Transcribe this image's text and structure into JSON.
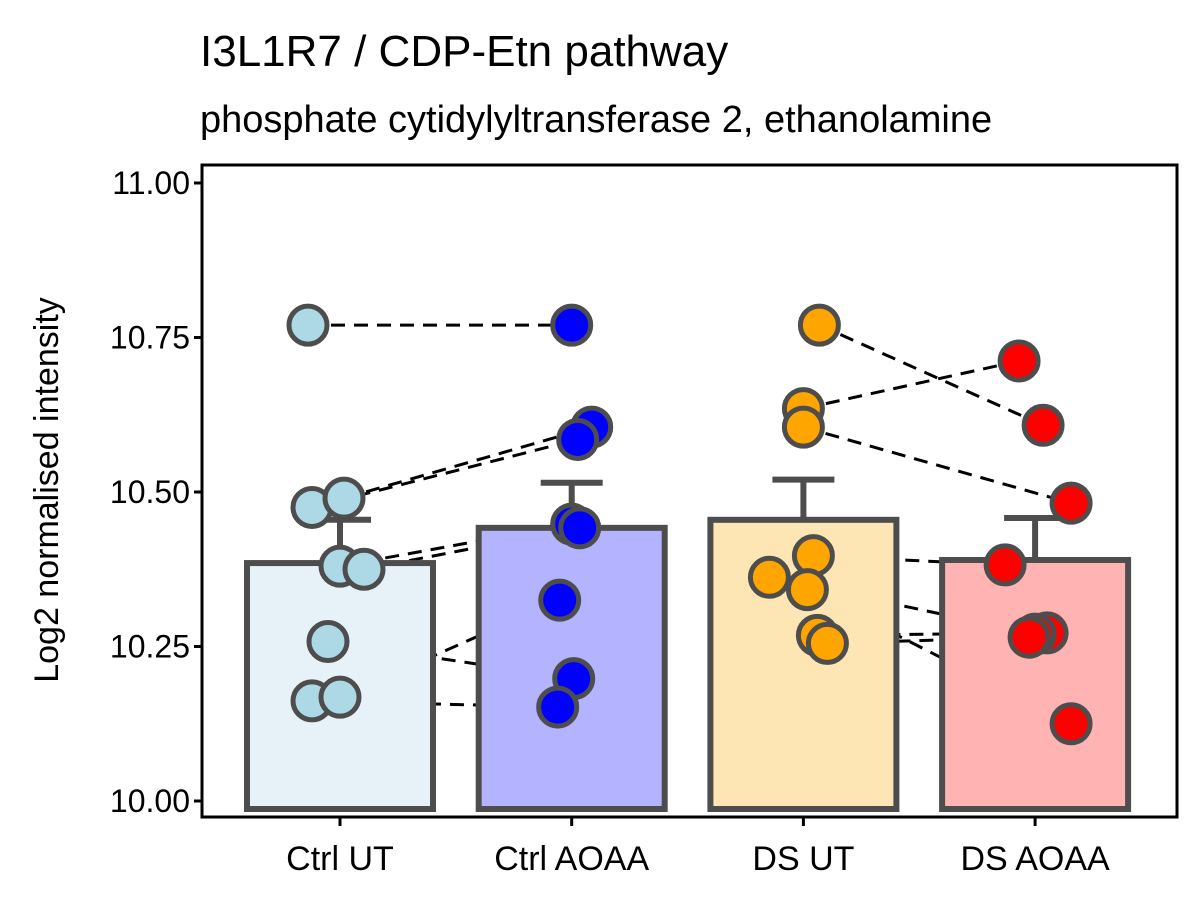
{
  "chart_data": {
    "type": "bar",
    "title": "I3L1R7 / CDP-Etn pathway",
    "subtitle": "phosphate cytidylyltransferase 2, ethanolamine",
    "xlabel": "",
    "ylabel": "Log2 normalised intensity",
    "ylim": [
      10.0,
      11.0
    ],
    "yticks": [
      "10.00",
      "10.25",
      "10.50",
      "10.75",
      "11.00"
    ],
    "grid": false,
    "categories": [
      "Ctrl UT",
      "Ctrl AOAA",
      "DS UT",
      "DS AOAA"
    ],
    "bar_values": [
      10.385,
      10.442,
      10.455,
      10.39
    ],
    "error_upper": [
      10.455,
      10.515,
      10.52,
      10.458
    ],
    "colors": {
      "bar_fill": [
        "#e7f2f8",
        "#b3b3ff",
        "#fde6b3",
        "#ffb3b3"
      ],
      "point_fill": [
        "#add8e6",
        "#0000ff",
        "#ffa500",
        "#ff0000"
      ],
      "outline": "#4d4d4d"
    },
    "points": [
      [
        10.77,
        10.475,
        10.49,
        10.38,
        10.375,
        10.258,
        10.162,
        10.168
      ],
      [
        10.77,
        10.605,
        10.585,
        10.448,
        10.442,
        10.325,
        10.198,
        10.152
      ],
      [
        10.77,
        10.635,
        10.605,
        10.397,
        10.362,
        10.342,
        10.268,
        10.255
      ],
      [
        10.712,
        10.608,
        10.482,
        10.382,
        10.272,
        10.27,
        10.265,
        10.125
      ]
    ],
    "pairs": [
      [
        10.77,
        10.77
      ],
      [
        10.49,
        10.605
      ],
      [
        10.475,
        10.585
      ],
      [
        10.38,
        10.448
      ],
      [
        10.375,
        10.442
      ],
      [
        10.258,
        10.198
      ],
      [
        10.168,
        10.325
      ],
      [
        10.162,
        10.152
      ],
      [
        10.77,
        10.608
      ],
      [
        10.635,
        10.712
      ],
      [
        10.605,
        10.482
      ],
      [
        10.397,
        10.382
      ],
      [
        10.362,
        10.27
      ],
      [
        10.342,
        10.125
      ],
      [
        10.268,
        10.272
      ],
      [
        10.255,
        10.265
      ]
    ]
  }
}
